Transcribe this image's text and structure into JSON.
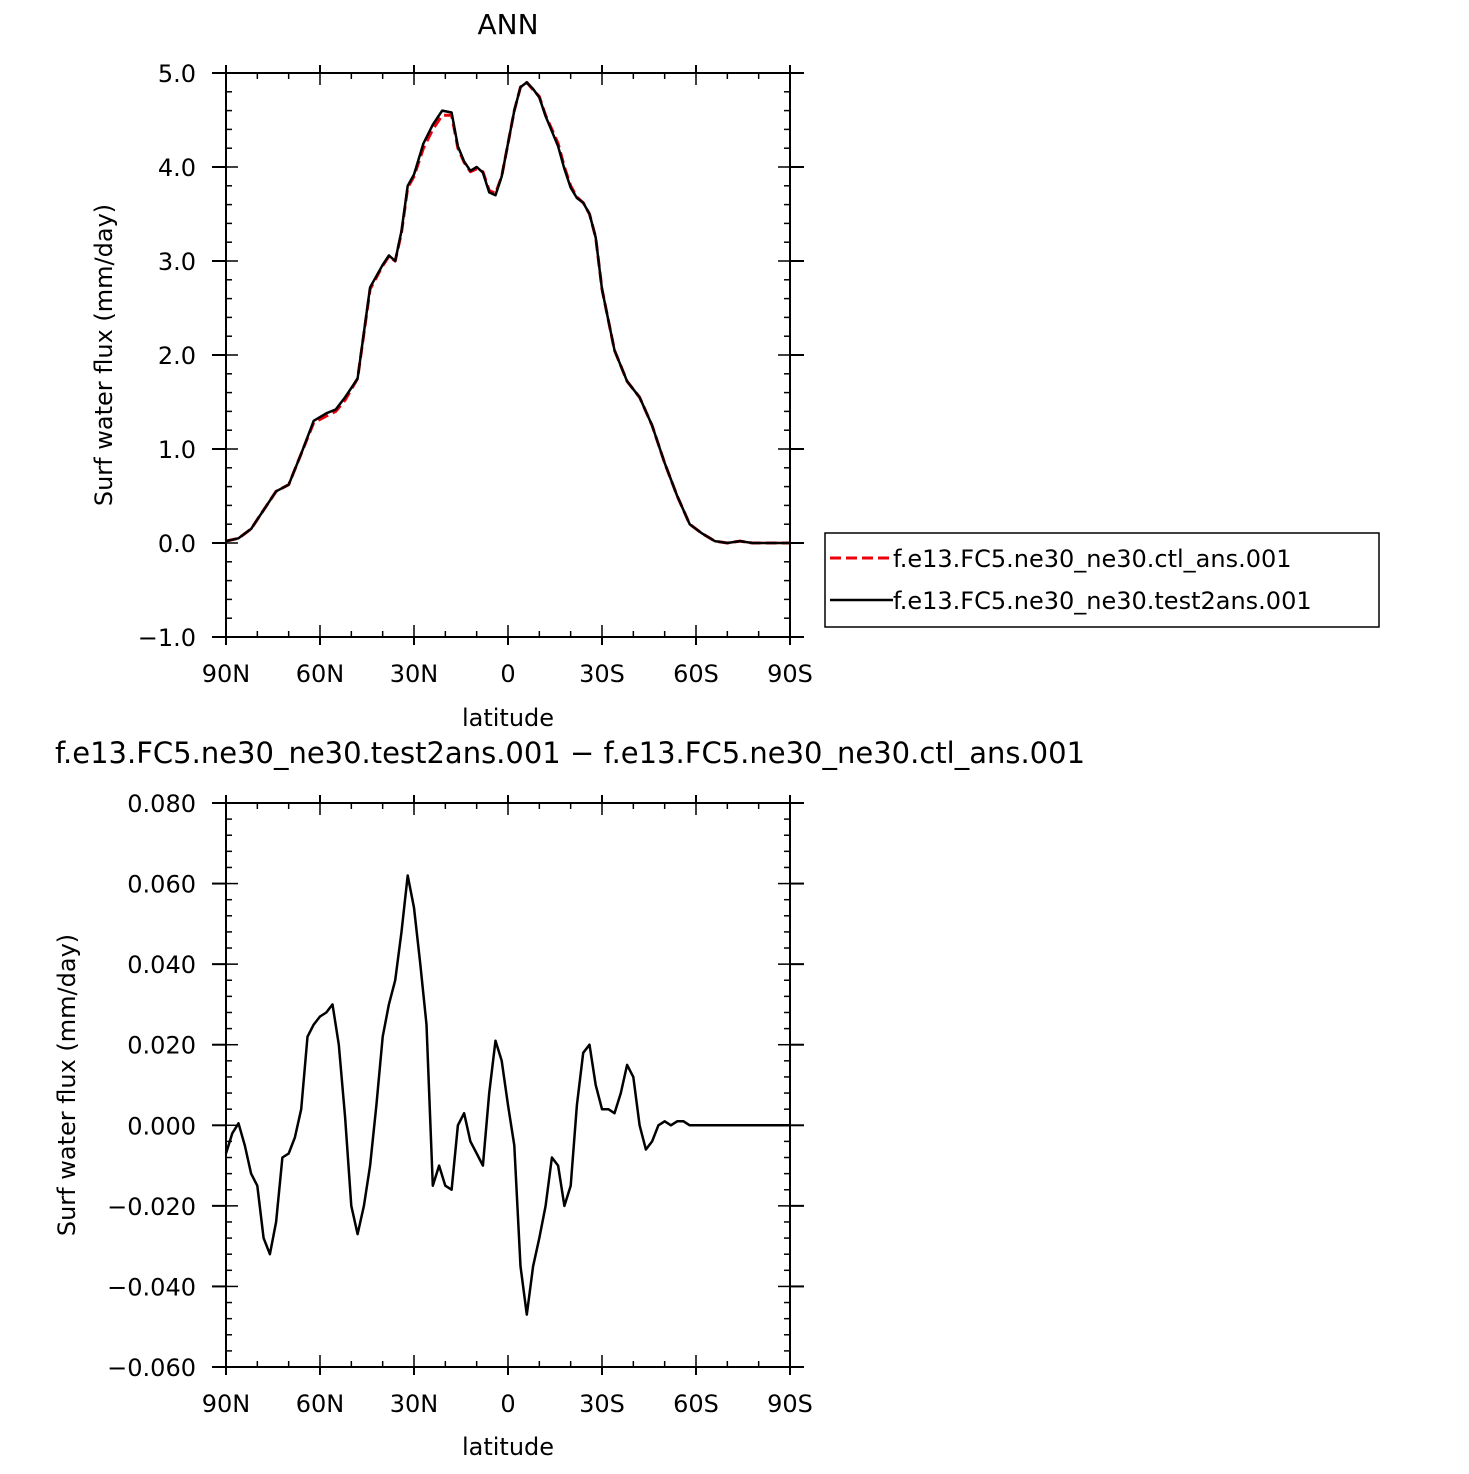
{
  "chart_data": [
    {
      "type": "line",
      "title": "ANN",
      "xlabel": "latitude",
      "ylabel": "Surf water flux (mm/day)",
      "xlim": [
        -90,
        90
      ],
      "ylim": [
        -1.0,
        5.0
      ],
      "x_tick_values": [
        -90,
        -60,
        -30,
        0,
        30,
        60,
        90
      ],
      "x_tick_labels": [
        "90N",
        "60N",
        "30N",
        "0",
        "30S",
        "60S",
        "90S"
      ],
      "y_tick_values": [
        -1.0,
        0.0,
        1.0,
        2.0,
        3.0,
        4.0,
        5.0
      ],
      "y_tick_labels": [
        "−1.0",
        "0.0",
        "1.0",
        "2.0",
        "3.0",
        "4.0",
        "5.0"
      ],
      "legend_position": "right",
      "grid": false,
      "x": [
        -90,
        -86,
        -82,
        -78,
        -74,
        -70,
        -66,
        -62,
        -58,
        -55,
        -52,
        -48,
        -44,
        -40,
        -38,
        -36,
        -34,
        -32,
        -30,
        -27,
        -24,
        -21,
        -18,
        -16,
        -14,
        -12,
        -10,
        -8,
        -6,
        -4,
        -2,
        0,
        2,
        4,
        6,
        8,
        10,
        12,
        14,
        16,
        18,
        20,
        22,
        24,
        26,
        28,
        30,
        34,
        38,
        42,
        46,
        50,
        54,
        58,
        62,
        66,
        70,
        74,
        78,
        82,
        86,
        90
      ],
      "series": [
        {
          "name": "f.e13.FC5.ne30_ne30.ctl_ans.001",
          "color": "#e8000b",
          "dash": "dashed",
          "values": [
            0.02,
            0.05,
            0.15,
            0.35,
            0.55,
            0.62,
            0.95,
            1.28,
            1.35,
            1.4,
            1.52,
            1.75,
            2.7,
            2.95,
            3.05,
            3.0,
            3.3,
            3.78,
            3.9,
            4.2,
            4.4,
            4.55,
            4.55,
            4.2,
            4.05,
            3.95,
            3.98,
            3.95,
            3.75,
            3.72,
            3.9,
            4.25,
            4.6,
            4.85,
            4.9,
            4.82,
            4.75,
            4.55,
            4.4,
            4.25,
            4.0,
            3.8,
            3.68,
            3.62,
            3.5,
            3.25,
            2.7,
            2.05,
            1.72,
            1.55,
            1.25,
            0.85,
            0.5,
            0.2,
            0.1,
            0.02,
            0.0,
            0.02,
            0.0,
            0.0,
            0.0,
            0.0
          ]
        },
        {
          "name": "f.e13.FC5.ne30_ne30.test2ans.001",
          "color": "#000000",
          "dash": "solid",
          "values": [
            0.02,
            0.05,
            0.15,
            0.35,
            0.55,
            0.62,
            0.95,
            1.3,
            1.38,
            1.42,
            1.55,
            1.75,
            2.72,
            2.96,
            3.06,
            3.0,
            3.32,
            3.8,
            3.92,
            4.25,
            4.45,
            4.6,
            4.58,
            4.22,
            4.06,
            3.96,
            4.0,
            3.94,
            3.73,
            3.7,
            3.9,
            4.25,
            4.6,
            4.85,
            4.9,
            4.83,
            4.74,
            4.54,
            4.38,
            4.22,
            3.98,
            3.78,
            3.67,
            3.62,
            3.5,
            3.25,
            2.7,
            2.05,
            1.72,
            1.55,
            1.25,
            0.85,
            0.5,
            0.2,
            0.1,
            0.02,
            0.0,
            0.02,
            0.0,
            0.0,
            0.0,
            0.0
          ]
        }
      ]
    },
    {
      "type": "line",
      "title": "f.e13.FC5.ne30_ne30.test2ans.001 − f.e13.FC5.ne30_ne30.ctl_ans.001",
      "xlabel": "latitude",
      "ylabel": "Surf water flux (mm/day)",
      "xlim": [
        -90,
        90
      ],
      "ylim": [
        -0.06,
        0.08
      ],
      "x_tick_values": [
        -90,
        -60,
        -30,
        0,
        30,
        60,
        90
      ],
      "x_tick_labels": [
        "90N",
        "60N",
        "30N",
        "0",
        "30S",
        "60S",
        "90S"
      ],
      "y_tick_values": [
        -0.06,
        -0.04,
        -0.02,
        0.0,
        0.02,
        0.04,
        0.06,
        0.08
      ],
      "y_tick_labels": [
        "−0.060",
        "−0.040",
        "−0.020",
        "0.000",
        "0.020",
        "0.040",
        "0.060",
        "0.080"
      ],
      "grid": false,
      "x": [
        -90,
        -88,
        -86,
        -84,
        -82,
        -80,
        -78,
        -76,
        -74,
        -72,
        -70,
        -68,
        -66,
        -64,
        -62,
        -60,
        -58,
        -56,
        -54,
        -52,
        -50,
        -48,
        -46,
        -44,
        -42,
        -40,
        -38,
        -36,
        -34,
        -32,
        -30,
        -28,
        -26,
        -24,
        -22,
        -20,
        -18,
        -16,
        -14,
        -12,
        -10,
        -8,
        -6,
        -4,
        -2,
        0,
        2,
        4,
        6,
        8,
        10,
        12,
        14,
        16,
        18,
        20,
        22,
        24,
        26,
        28,
        30,
        32,
        34,
        36,
        38,
        40,
        42,
        44,
        46,
        48,
        50,
        52,
        54,
        56,
        58,
        60,
        62,
        64,
        66,
        68,
        70,
        72,
        74,
        76,
        78,
        80,
        82,
        84,
        86,
        88,
        90
      ],
      "series": [
        {
          "name": "",
          "color": "#000000",
          "dash": "solid",
          "values": [
            -0.007,
            -0.002,
            0.0005,
            -0.005,
            -0.012,
            -0.015,
            -0.028,
            -0.032,
            -0.024,
            -0.008,
            -0.007,
            -0.003,
            0.004,
            0.022,
            0.025,
            0.027,
            0.028,
            0.03,
            0.02,
            0.002,
            -0.02,
            -0.027,
            -0.02,
            -0.01,
            0.005,
            0.022,
            0.03,
            0.036,
            0.048,
            0.062,
            0.054,
            0.04,
            0.025,
            -0.015,
            -0.01,
            -0.015,
            -0.016,
            0.0,
            0.003,
            -0.004,
            -0.007,
            -0.01,
            0.008,
            0.021,
            0.016,
            0.005,
            -0.005,
            -0.035,
            -0.047,
            -0.035,
            -0.028,
            -0.02,
            -0.008,
            -0.01,
            -0.02,
            -0.015,
            0.005,
            0.018,
            0.02,
            0.01,
            0.004,
            0.004,
            0.003,
            0.008,
            0.015,
            0.012,
            0.0,
            -0.006,
            -0.004,
            0.0,
            0.001,
            0.0,
            0.001,
            0.001,
            0.0,
            0.0,
            0.0,
            0.0,
            0.0,
            0.0,
            0.0,
            0.0,
            0.0,
            0.0,
            0.0,
            0.0,
            0.0,
            0.0,
            0.0,
            0.0,
            0.0
          ]
        }
      ]
    }
  ]
}
